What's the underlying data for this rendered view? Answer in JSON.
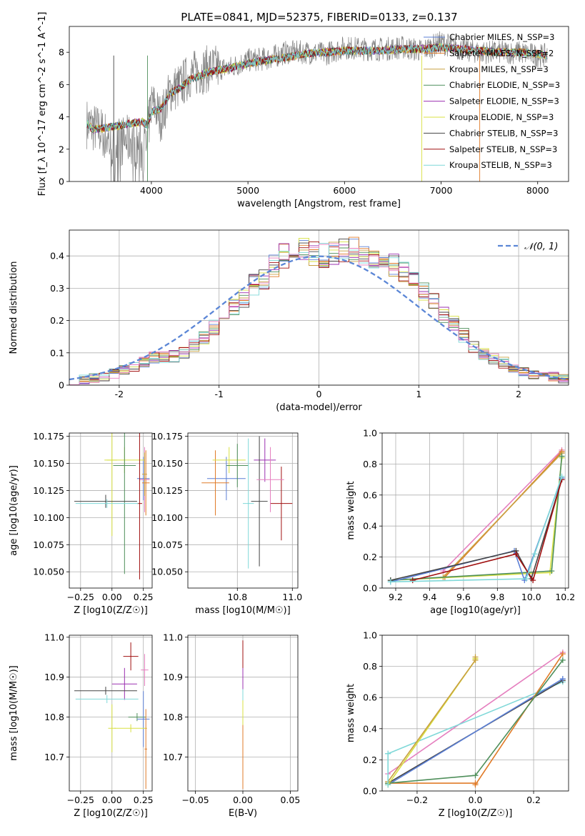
{
  "figure_title": "PLATE=0841, MJD=52375, FIBERID=0133, z=0.137",
  "colors": {
    "series": [
      "#5b7fd6",
      "#e07b28",
      "#c8a040",
      "#4f8f5b",
      "#9b30b0",
      "#d8e040",
      "#444444",
      "#a01010",
      "#7fd8d8"
    ],
    "extra": [
      "#e57fbf"
    ],
    "normal_curve": "#5b86d6"
  },
  "chart_data": [
    {
      "id": "spectrum",
      "type": "line",
      "xlabel": "wavelength [Angstrom, rest frame]",
      "ylabel": "Flux [f_λ 10^-17 erg cm^-2 s^-1 A^-1]",
      "xlim": [
        3150,
        8320
      ],
      "ylim": [
        0,
        9.6
      ],
      "xticks": [
        4000,
        5000,
        6000,
        7000,
        8000
      ],
      "yticks": [
        0,
        2,
        4,
        6,
        8
      ],
      "grid": false,
      "legend_position": "top-right",
      "data_color": "#808080",
      "data_envelope": {
        "x": [
          3330,
          3500,
          3600,
          3700,
          3800,
          3900,
          3950,
          4000,
          4100,
          4200,
          4300,
          4400,
          4600,
          4800,
          5000,
          5200,
          5400,
          5600,
          5800,
          6000,
          6200,
          6400,
          6600,
          6800,
          7000,
          7200,
          7400,
          7600,
          7800,
          8000,
          8100
        ],
        "y": [
          3.6,
          3.0,
          2.2,
          2.5,
          2.6,
          2.0,
          2.2,
          5.0,
          3.9,
          5.7,
          5.9,
          6.6,
          7.0,
          7.0,
          7.5,
          7.6,
          8.0,
          8.0,
          7.9,
          8.3,
          8.2,
          8.2,
          8.3,
          8.1,
          8.6,
          8.2,
          8.0,
          8.0,
          8.0,
          7.8,
          7.8
        ]
      },
      "series": [
        {
          "name": "Chabrier MILES, N_SSP=3"
        },
        {
          "name": "Salpeter MILES, N_SSP=2"
        },
        {
          "name": "Kroupa MILES, N_SSP=3"
        },
        {
          "name": "Chabrier ELODIE, N_SSP=3"
        },
        {
          "name": "Salpeter ELODIE, N_SSP=3"
        },
        {
          "name": "Kroupa ELODIE, N_SSP=3"
        },
        {
          "name": "Chabrier STELIB, N_SSP=3"
        },
        {
          "name": "Salpeter STELIB, N_SSP=3"
        },
        {
          "name": "Kroupa STELIB, N_SSP=3"
        }
      ],
      "model_envelope": {
        "x": [
          3330,
          3400,
          3500,
          3600,
          3700,
          3800,
          3900,
          3960,
          4000,
          4100,
          4200,
          4300,
          4400,
          4600,
          4800,
          5000,
          5200,
          5400,
          5600,
          5800,
          6000,
          6200,
          6400,
          6600,
          6800,
          7000,
          7200,
          7400,
          7600,
          7800,
          8000,
          8100
        ],
        "y": [
          3.6,
          3.2,
          3.3,
          3.4,
          3.5,
          3.6,
          3.7,
          3.5,
          4.3,
          4.5,
          5.5,
          5.8,
          6.3,
          6.8,
          7.0,
          7.3,
          7.5,
          7.7,
          7.9,
          8.0,
          8.1,
          8.1,
          8.1,
          8.2,
          8.2,
          8.3,
          8.2,
          8.1,
          8.0,
          8.0,
          7.9,
          7.8
        ]
      }
    },
    {
      "id": "residuals",
      "type": "bar",
      "xlabel": "(data-model)/error",
      "ylabel": "Normed distribution",
      "xlim": [
        -2.5,
        2.5
      ],
      "ylim": [
        0,
        0.48
      ],
      "xticks": [
        -2,
        -1,
        0,
        1,
        2
      ],
      "yticks": [
        0.0,
        0.1,
        0.2,
        0.3,
        0.4
      ],
      "grid": true,
      "legend_position": "top-right",
      "legend_label": "𝒩(0, 1)",
      "bin_width": 0.1,
      "bin_start": -2.5,
      "mean_values": [
        0.015,
        0.018,
        0.022,
        0.028,
        0.036,
        0.046,
        0.058,
        0.072,
        0.085,
        0.085,
        0.09,
        0.1,
        0.125,
        0.15,
        0.18,
        0.21,
        0.245,
        0.27,
        0.31,
        0.33,
        0.37,
        0.4,
        0.415,
        0.42,
        0.41,
        0.4,
        0.405,
        0.415,
        0.42,
        0.41,
        0.4,
        0.385,
        0.37,
        0.35,
        0.32,
        0.29,
        0.26,
        0.22,
        0.19,
        0.155,
        0.12,
        0.095,
        0.08,
        0.07,
        0.05,
        0.04,
        0.035,
        0.03,
        0.025,
        0.02
      ],
      "normal_curve": {
        "mean": 0,
        "sigma": 1
      }
    },
    {
      "id": "age-vs-Z",
      "type": "scatter",
      "xlabel": "Z [log10(Z/Z☉)]",
      "ylabel": "age  [log10(age/yr)]",
      "xlim": [
        -0.34,
        0.32
      ],
      "ylim": [
        10.035,
        10.178
      ],
      "xticks": [
        -0.25,
        0.0,
        0.25
      ],
      "xtick_labels": [
        "−0.25",
        "0.00",
        "0.25"
      ],
      "yticks": [
        10.05,
        10.075,
        10.1,
        10.125,
        10.15,
        10.175
      ],
      "ytick_labels": [
        "10.050",
        "10.075",
        "10.100",
        "10.125",
        "10.150",
        "10.175"
      ],
      "grid": true,
      "errorbars": [
        {
          "x": 0.25,
          "y": 10.136,
          "xerr": 0.05,
          "yerr": 0.02,
          "c": 0
        },
        {
          "x": 0.27,
          "y": 10.132,
          "xerr": 0.03,
          "yerr": 0.03,
          "c": 1
        },
        {
          "x": 0.26,
          "y": 10.135,
          "xerr": 0.04,
          "yerr": 0.03,
          "c": 9
        },
        {
          "x": 0.1,
          "y": 10.153,
          "xerr": 0.16,
          "yerr": 0.012,
          "c": 5
        },
        {
          "x": 0.0,
          "y": 10.153,
          "xerr": 0.04,
          "yerr": 0.07,
          "c": 5
        },
        {
          "x": 0.1,
          "y": 10.148,
          "xerr": 0.09,
          "yerr": 0.1,
          "c": 3
        },
        {
          "x": -0.05,
          "y": 10.115,
          "xerr": 0.25,
          "yerr": 0.006,
          "c": 6
        },
        {
          "x": 0.22,
          "y": 10.113,
          "xerr": 0.02,
          "yerr": 0.07,
          "c": 7
        },
        {
          "x": -0.04,
          "y": 10.113,
          "xerr": 0.25,
          "yerr": 0.004,
          "c": 8
        },
        {
          "x": 0.26,
          "y": 10.14,
          "xerr": 0.02,
          "yerr": 0.02,
          "c": 2
        }
      ]
    },
    {
      "id": "age-vs-mass",
      "type": "scatter",
      "xlabel": "mass [log10(M/M☉)]",
      "ylabel": "",
      "xlim": [
        10.62,
        11.02
      ],
      "ylim": [
        10.035,
        10.178
      ],
      "xticks": [
        10.8,
        11.0
      ],
      "xtick_labels": [
        "10.8",
        "11.0"
      ],
      "yticks": [
        10.05,
        10.075,
        10.1,
        10.125,
        10.15,
        10.175
      ],
      "ytick_labels": [
        "10.050",
        "10.075",
        "10.100",
        "10.125",
        "10.150",
        "10.175"
      ],
      "grid": true,
      "errorbars": [
        {
          "x": 10.76,
          "y": 10.136,
          "xerr": 0.07,
          "yerr": 0.02,
          "c": 0
        },
        {
          "x": 10.72,
          "y": 10.132,
          "xerr": 0.05,
          "yerr": 0.03,
          "c": 1
        },
        {
          "x": 10.77,
          "y": 10.153,
          "xerr": 0.06,
          "yerr": 0.012,
          "c": 5
        },
        {
          "x": 10.8,
          "y": 10.148,
          "xerr": 0.04,
          "yerr": 0.02,
          "c": 3
        },
        {
          "x": 10.9,
          "y": 10.153,
          "xerr": 0.04,
          "yerr": 0.02,
          "c": 4
        },
        {
          "x": 10.88,
          "y": 10.115,
          "xerr": 0.03,
          "yerr": 0.06,
          "c": 6
        },
        {
          "x": 10.96,
          "y": 10.113,
          "xerr": 0.04,
          "yerr": 0.034,
          "c": 7
        },
        {
          "x": 10.84,
          "y": 10.113,
          "xerr": 0.02,
          "yerr": 0.06,
          "c": 8
        },
        {
          "x": 10.92,
          "y": 10.135,
          "xerr": 0.05,
          "yerr": 0.03,
          "c": 9
        }
      ]
    },
    {
      "id": "weight-vs-age",
      "type": "line",
      "xlabel": "age  [log10(age/yr)]",
      "ylabel": "mass weight",
      "xlim": [
        9.12,
        10.22
      ],
      "ylim": [
        0.0,
        1.0
      ],
      "xticks": [
        9.2,
        9.4,
        9.6,
        9.8,
        10.0,
        10.2
      ],
      "xtick_labels": [
        "9.2",
        "9.4",
        "9.6",
        "9.8",
        "10.0",
        "10.2"
      ],
      "yticks": [
        0.0,
        0.2,
        0.4,
        0.6,
        0.8,
        1.0
      ],
      "ytick_labels": [
        "0.0",
        "0.2",
        "0.4",
        "0.6",
        "0.8",
        "1.0"
      ],
      "grid": true,
      "series": [
        {
          "x": [
            9.48,
            10.18
          ],
          "y": [
            0.11,
            0.89
          ],
          "c": 9
        },
        {
          "x": [
            9.49,
            10.18
          ],
          "y": [
            0.07,
            0.88
          ],
          "c": 1
        },
        {
          "x": [
            9.48,
            10.18
          ],
          "y": [
            0.07,
            0.87
          ],
          "c": 2
        },
        {
          "x": [
            9.17,
            10.11,
            10.18
          ],
          "y": [
            0.05,
            0.1,
            0.84
          ],
          "c": 5
        },
        {
          "x": [
            9.17,
            10.12,
            10.18
          ],
          "y": [
            0.05,
            0.11,
            0.85
          ],
          "c": 3
        },
        {
          "x": [
            9.17,
            9.9,
            9.96,
            10.18
          ],
          "y": [
            0.04,
            0.24,
            0.05,
            0.71
          ],
          "c": 0
        },
        {
          "x": [
            9.17,
            9.91,
            10.0,
            10.18
          ],
          "y": [
            0.05,
            0.24,
            0.06,
            0.7
          ],
          "c": 6
        },
        {
          "x": [
            9.3,
            9.91,
            10.01,
            10.18
          ],
          "y": [
            0.05,
            0.22,
            0.05,
            0.7
          ],
          "c": 7
        },
        {
          "x": [
            9.17,
            9.97,
            10.02,
            10.18
          ],
          "y": [
            0.04,
            0.06,
            0.22,
            0.72
          ],
          "c": 8
        }
      ]
    },
    {
      "id": "mass-vs-Z",
      "type": "scatter",
      "xlabel": "Z [log10(Z/Z☉)]",
      "ylabel": "mass [log10(M/M☉)]",
      "xlim": [
        -0.34,
        0.32
      ],
      "ylim": [
        10.615,
        11.005
      ],
      "xticks": [
        -0.25,
        0.0,
        0.25
      ],
      "xtick_labels": [
        "−0.25",
        "0.00",
        "0.25"
      ],
      "yticks": [
        10.7,
        10.8,
        10.9,
        11.0
      ],
      "ytick_labels": [
        "10.7",
        "10.8",
        "10.9",
        "11.0"
      ],
      "grid": true,
      "errorbars": [
        {
          "x": 0.15,
          "y": 10.952,
          "xerr": 0.06,
          "yerr": 0.035,
          "c": 7
        },
        {
          "x": 0.26,
          "y": 10.918,
          "xerr": 0.03,
          "yerr": 0.04,
          "c": 9
        },
        {
          "x": 0.1,
          "y": 10.883,
          "xerr": 0.1,
          "yerr": 0.04,
          "c": 4
        },
        {
          "x": -0.05,
          "y": 10.866,
          "xerr": 0.25,
          "yerr": 0.01,
          "c": 6
        },
        {
          "x": 0.2,
          "y": 10.8,
          "xerr": 0.07,
          "yerr": 0.01,
          "c": 3
        },
        {
          "x": 0.25,
          "y": 10.795,
          "xerr": 0.05,
          "yerr": 0.07,
          "c": 0
        },
        {
          "x": 0.0,
          "y": 10.772,
          "xerr": 0.03,
          "yerr": 0.06,
          "c": 5
        },
        {
          "x": 0.15,
          "y": 10.772,
          "xerr": 0.13,
          "yerr": 0.01,
          "c": 5
        },
        {
          "x": 0.27,
          "y": 10.72,
          "xerr": 0.01,
          "yerr": 0.1,
          "c": 1
        },
        {
          "x": -0.04,
          "y": 10.845,
          "xerr": 0.25,
          "yerr": 0.01,
          "c": 8
        }
      ]
    },
    {
      "id": "mass-vs-EBV",
      "type": "scatter",
      "xlabel": "E(B-V)",
      "ylabel": "",
      "xlim": [
        -0.058,
        0.058
      ],
      "ylim": [
        10.615,
        11.005
      ],
      "xticks": [
        -0.05,
        0.0,
        0.05
      ],
      "xtick_labels": [
        "−0.05",
        "0.00",
        "0.05"
      ],
      "yticks": [
        10.7,
        10.8,
        10.9,
        11.0
      ],
      "ytick_labels": [
        "10.7",
        "10.8",
        "10.9",
        "11.0"
      ],
      "grid": true,
      "errorbars": [
        {
          "x": 0.0,
          "y": 10.952,
          "xerr": 0,
          "yerr": 0.04,
          "c": 7
        },
        {
          "x": 0.0,
          "y": 10.883,
          "xerr": 0,
          "yerr": 0.04,
          "c": 4
        },
        {
          "x": 0.0,
          "y": 10.82,
          "xerr": 0,
          "yerr": 0.05,
          "c": 8
        },
        {
          "x": 0.0,
          "y": 10.772,
          "xerr": 0,
          "yerr": 0.07,
          "c": 5
        },
        {
          "x": 0.0,
          "y": 10.7,
          "xerr": 0,
          "yerr": 0.08,
          "c": 1
        }
      ]
    },
    {
      "id": "weight-vs-Z",
      "type": "line",
      "xlabel": "Z [log10(Z/Z☉)]",
      "ylabel": "mass weight",
      "xlim": [
        -0.32,
        0.32
      ],
      "ylim": [
        0.0,
        1.0
      ],
      "xticks": [
        -0.2,
        0.0,
        0.2
      ],
      "xtick_labels": [
        "−0.2",
        "0.0",
        "0.2"
      ],
      "yticks": [
        0.0,
        0.2,
        0.4,
        0.6,
        0.8,
        1.0
      ],
      "ytick_labels": [
        "0.0",
        "0.2",
        "0.4",
        "0.6",
        "0.8",
        "1.0"
      ],
      "grid": true,
      "series": [
        {
          "x": [
            -0.3,
            0.3
          ],
          "y": [
            0.11,
            0.89
          ],
          "c": 9
        },
        {
          "x": [
            -0.3,
            0.3
          ],
          "y": [
            0.24,
            0.7
          ],
          "c": 8
        },
        {
          "x": [
            -0.3,
            0.3
          ],
          "y": [
            0.05,
            0.71
          ],
          "c": 6
        },
        {
          "x": [
            -0.3,
            0.3
          ],
          "y": [
            0.04,
            0.72
          ],
          "c": 0
        },
        {
          "x": [
            -0.3,
            0.0,
            0.0,
            0.3
          ],
          "y": [
            0.05,
            0.05,
            0.04,
            0.88
          ],
          "c": 1
        },
        {
          "x": [
            -0.3,
            0.0,
            0.3
          ],
          "y": [
            0.05,
            0.1,
            0.84
          ],
          "c": 3
        },
        {
          "x": [
            -0.3,
            0.0,
            0.0
          ],
          "y": [
            0.04,
            0.84,
            0.85
          ],
          "c": 5
        },
        {
          "x": [
            -0.3,
            0.0,
            0.0
          ],
          "y": [
            0.06,
            0.84,
            0.86
          ],
          "c": 2
        },
        {
          "x": [
            -0.3,
            -0.3
          ],
          "y": [
            0.04,
            0.24
          ],
          "c": 8
        }
      ]
    }
  ]
}
